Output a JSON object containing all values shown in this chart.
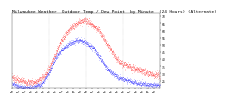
{
  "title": "Milwaukee Weather  Outdoor Temp / Dew Point  by Minute  (24 Hours) (Alternate)",
  "title_fontsize": 3.2,
  "temp_color": "#ff0000",
  "dew_color": "#0000ff",
  "bg_color": "#ffffff",
  "ylim": [
    20,
    72
  ],
  "ytick_values": [
    70,
    65,
    60,
    55,
    50,
    45,
    40,
    35,
    30,
    25
  ],
  "grid_color": "#999999",
  "n_points": 1440,
  "temp_base": [
    28,
    27,
    26,
    26,
    25,
    25,
    25,
    24,
    24,
    24,
    24,
    24,
    24,
    24,
    25,
    26,
    27,
    28,
    30,
    32,
    34,
    37,
    40,
    43,
    46,
    49,
    52,
    54,
    56,
    58,
    60,
    61,
    62,
    63,
    64,
    65,
    66,
    67,
    67,
    67,
    67,
    66,
    65,
    64,
    63,
    62,
    61,
    59,
    57,
    55,
    52,
    50,
    48,
    46,
    44,
    42,
    40,
    39,
    38,
    37,
    36,
    36,
    35,
    35,
    34,
    34,
    33,
    33,
    32,
    32,
    32,
    31,
    31,
    30,
    30,
    30,
    29,
    29,
    29,
    28
  ],
  "dew_base": [
    23,
    22,
    22,
    21,
    21,
    21,
    20,
    20,
    20,
    20,
    20,
    20,
    21,
    21,
    22,
    22,
    23,
    25,
    27,
    29,
    31,
    34,
    37,
    40,
    42,
    44,
    46,
    47,
    48,
    49,
    50,
    51,
    52,
    52,
    53,
    53,
    53,
    53,
    52,
    52,
    51,
    50,
    49,
    48,
    47,
    45,
    43,
    41,
    39,
    37,
    35,
    33,
    32,
    31,
    30,
    29,
    28,
    27,
    27,
    26,
    26,
    25,
    25,
    25,
    24,
    24,
    24,
    23,
    23,
    23,
    23,
    23,
    22,
    22,
    22,
    22,
    22,
    22,
    22,
    22
  ],
  "noise_temp": 1.2,
  "noise_dew": 0.9,
  "marker_size": 0.5,
  "xtick_every": 60,
  "vgrid_positions": [
    0,
    360,
    720,
    1080,
    1439
  ]
}
